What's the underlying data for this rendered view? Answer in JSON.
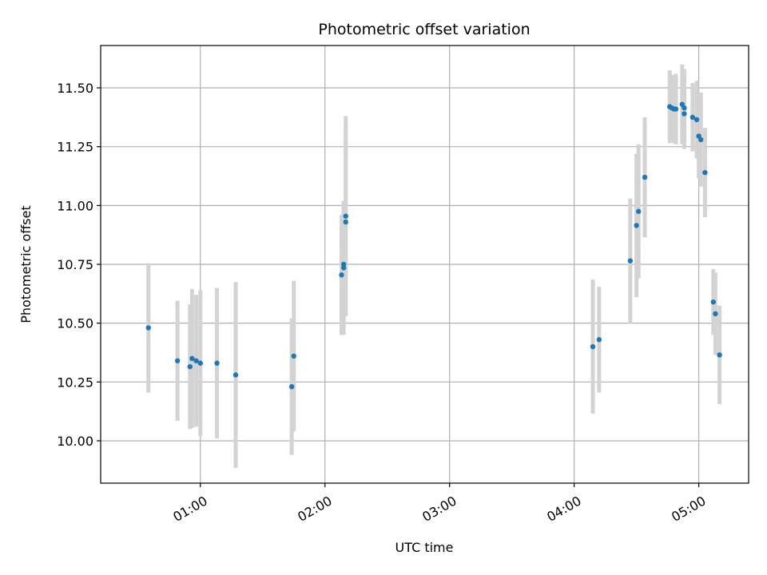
{
  "chart_data": {
    "type": "scatter",
    "title": "Photometric offset variation",
    "xlabel": "UTC time",
    "ylabel": "Photometric offset",
    "xlim": [
      "00:12",
      "05:24"
    ],
    "ylim": [
      9.82,
      11.68
    ],
    "xticks": [
      "01:00",
      "02:00",
      "03:00",
      "04:00",
      "05:00"
    ],
    "yticks": [
      "10.00",
      "10.25",
      "10.50",
      "10.75",
      "11.00",
      "11.25",
      "11.50"
    ],
    "grid": true,
    "legend": "none",
    "series": [
      {
        "points": [
          {
            "x": "00:35",
            "y": 10.48,
            "err": 0.275
          },
          {
            "x": "00:49",
            "y": 10.34,
            "err": 0.255
          },
          {
            "x": "00:55",
            "y": 10.315,
            "err": 0.265
          },
          {
            "x": "00:56",
            "y": 10.35,
            "err": 0.295
          },
          {
            "x": "00:58",
            "y": 10.34,
            "err": 0.28
          },
          {
            "x": "01:00",
            "y": 10.33,
            "err": 0.31
          },
          {
            "x": "01:08",
            "y": 10.33,
            "err": 0.32
          },
          {
            "x": "01:17",
            "y": 10.28,
            "err": 0.395
          },
          {
            "x": "01:44",
            "y": 10.23,
            "err": 0.29
          },
          {
            "x": "01:45",
            "y": 10.36,
            "err": 0.32
          },
          {
            "x": "02:08",
            "y": 10.705,
            "err": 0.255
          },
          {
            "x": "02:09",
            "y": 10.75,
            "err": 0.27
          },
          {
            "x": "02:09",
            "y": 10.735,
            "err": 0.285
          },
          {
            "x": "02:10",
            "y": 10.93,
            "err": 0.4
          },
          {
            "x": "02:10",
            "y": 10.955,
            "err": 0.425
          },
          {
            "x": "04:09",
            "y": 10.4,
            "err": 0.285
          },
          {
            "x": "04:12",
            "y": 10.43,
            "err": 0.225
          },
          {
            "x": "04:27",
            "y": 10.765,
            "err": 0.265
          },
          {
            "x": "04:30",
            "y": 10.915,
            "err": 0.305
          },
          {
            "x": "04:31",
            "y": 10.975,
            "err": 0.285
          },
          {
            "x": "04:34",
            "y": 11.12,
            "err": 0.255
          },
          {
            "x": "04:46",
            "y": 11.42,
            "err": 0.155
          },
          {
            "x": "04:47",
            "y": 11.415,
            "err": 0.14
          },
          {
            "x": "04:48",
            "y": 11.41,
            "err": 0.145
          },
          {
            "x": "04:49",
            "y": 11.41,
            "err": 0.15
          },
          {
            "x": "04:52",
            "y": 11.43,
            "err": 0.17
          },
          {
            "x": "04:53",
            "y": 11.39,
            "err": 0.15
          },
          {
            "x": "04:53",
            "y": 11.415,
            "err": 0.165
          },
          {
            "x": "04:57",
            "y": 11.375,
            "err": 0.145
          },
          {
            "x": "04:59",
            "y": 11.365,
            "err": 0.165
          },
          {
            "x": "05:00",
            "y": 11.295,
            "err": 0.18
          },
          {
            "x": "05:01",
            "y": 11.28,
            "err": 0.2
          },
          {
            "x": "05:03",
            "y": 11.14,
            "err": 0.19
          },
          {
            "x": "05:07",
            "y": 10.59,
            "err": 0.14
          },
          {
            "x": "05:08",
            "y": 10.54,
            "err": 0.175
          },
          {
            "x": "05:10",
            "y": 10.365,
            "err": 0.21
          }
        ]
      }
    ]
  },
  "colors": {
    "marker": "#1f77b4",
    "errorbar": "#d3d3d3",
    "grid": "#b0b0b0",
    "axes": "#000000"
  }
}
